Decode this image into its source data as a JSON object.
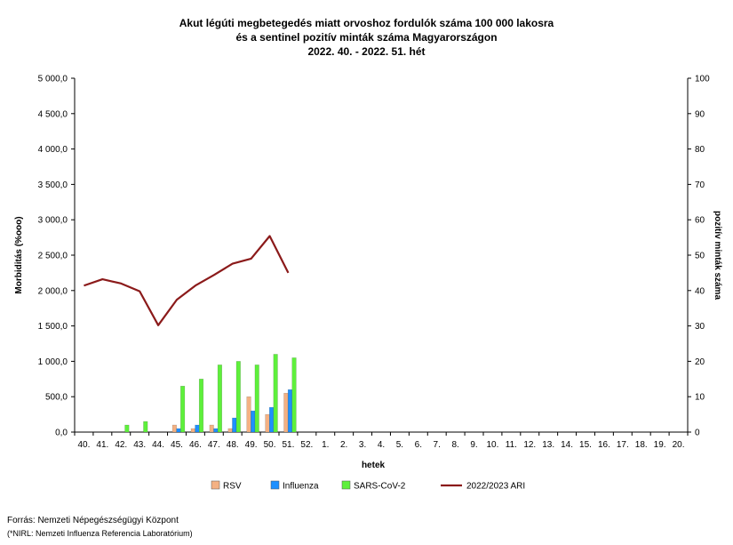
{
  "chart_data": {
    "type": "bar",
    "title_lines": [
      "Akut légúti megbetegedés miatt orvoshoz fordulók száma 100 000 lakosra",
      "és a sentinel pozitív minták száma Magyarországon",
      "2022. 40. - 2022. 51. hét"
    ],
    "xlabel": "hetek",
    "ylabel_left": "Morbiditás (%ooo)",
    "ylabel_right": "pozitív minták száma",
    "ylim_left": [
      0,
      5000
    ],
    "ylim_right": [
      0,
      100
    ],
    "left_ticks": [
      "0,0",
      "500,0",
      "1 000,0",
      "1 500,0",
      "2 000,0",
      "2 500,0",
      "3 000,0",
      "3 500,0",
      "4 000,0",
      "4 500,0",
      "5 000,0"
    ],
    "right_ticks": [
      "0",
      "10",
      "20",
      "30",
      "40",
      "50",
      "60",
      "70",
      "80",
      "90",
      "100"
    ],
    "categories": [
      "40.",
      "41.",
      "42.",
      "43.",
      "44.",
      "45.",
      "46.",
      "47.",
      "48.",
      "49.",
      "50.",
      "51.",
      "52.",
      "1.",
      "2.",
      "3.",
      "4.",
      "5.",
      "6.",
      "7.",
      "8.",
      "9.",
      "10.",
      "11.",
      "12.",
      "13.",
      "14.",
      "15.",
      "16.",
      "17.",
      "18.",
      "19.",
      "20."
    ],
    "bar_series": [
      {
        "name": "RSV",
        "color": "#f4b183",
        "axis": "right",
        "values": [
          0,
          0,
          0,
          0,
          0,
          2,
          1,
          2,
          1,
          10,
          5,
          11,
          null,
          null,
          null,
          null,
          null,
          null,
          null,
          null,
          null,
          null,
          null,
          null,
          null,
          null,
          null,
          null,
          null,
          null,
          null,
          null,
          null
        ]
      },
      {
        "name": "Influenza",
        "color": "#1e90ff",
        "axis": "right",
        "values": [
          0,
          0,
          0,
          0,
          0,
          1,
          2,
          1,
          4,
          6,
          7,
          12,
          null,
          null,
          null,
          null,
          null,
          null,
          null,
          null,
          null,
          null,
          null,
          null,
          null,
          null,
          null,
          null,
          null,
          null,
          null,
          null,
          null
        ]
      },
      {
        "name": "SARS-CoV-2",
        "color": "#5ef03b",
        "axis": "right",
        "values": [
          0,
          0,
          2,
          3,
          0,
          13,
          15,
          19,
          20,
          19,
          22,
          21,
          null,
          null,
          null,
          null,
          null,
          null,
          null,
          null,
          null,
          null,
          null,
          null,
          null,
          null,
          null,
          null,
          null,
          null,
          null,
          null,
          null
        ]
      }
    ],
    "line_series": [
      {
        "name": "2022/2023 ARI",
        "color": "#8b1a1a",
        "axis": "left",
        "values": [
          2070,
          2160,
          2100,
          1990,
          1510,
          1870,
          2070,
          2220,
          2380,
          2450,
          2770,
          2250,
          null,
          null,
          null,
          null,
          null,
          null,
          null,
          null,
          null,
          null,
          null,
          null,
          null,
          null,
          null,
          null,
          null,
          null,
          null,
          null,
          null
        ]
      }
    ],
    "legend_position": "bottom",
    "grid": false
  },
  "footer": {
    "source": "Forrás: Nemzeti Népegészségügyi Központ",
    "note": "(*NIRL: Nemzeti Influenza Referencia Laboratórium)"
  }
}
